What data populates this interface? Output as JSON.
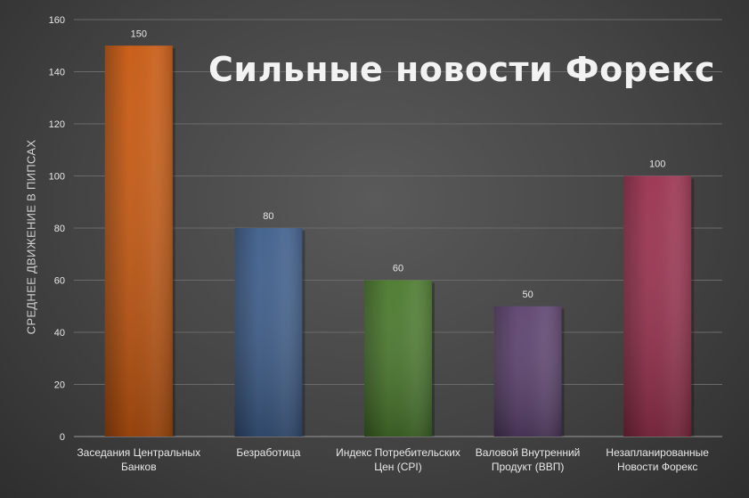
{
  "chart_data": {
    "type": "bar",
    "title": "Сильные новости Форекс",
    "ylabel": "СРЕДНЕЕ ДВИЖЕНИЕ В ПИПСАХ",
    "xlabel": "",
    "ylim": [
      0,
      160
    ],
    "yticks": [
      "0",
      "20",
      "40",
      "60",
      "80",
      "100",
      "120",
      "140",
      "160"
    ],
    "grid": true,
    "categories": [
      [
        "Заседания Центральных",
        "Банков"
      ],
      [
        "Безработица"
      ],
      [
        "Индекс Потребительских",
        "Цен (CPI)"
      ],
      [
        "Валовой Внутренний",
        "Продукт (ВВП)"
      ],
      [
        "Незапланированные",
        "Новости Форекс"
      ]
    ],
    "values": [
      150,
      80,
      60,
      50,
      100
    ],
    "colors": [
      "#c85a12",
      "#3f5f8c",
      "#4b7a2e",
      "#5e4470",
      "#9b3350"
    ]
  }
}
